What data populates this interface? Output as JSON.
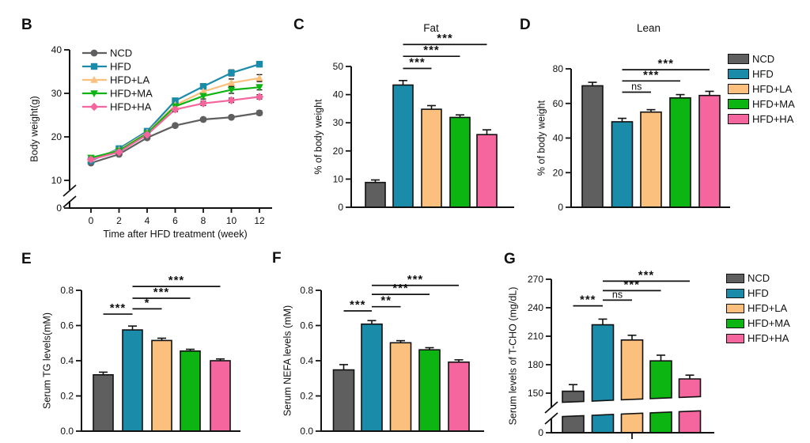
{
  "figure_colors": {
    "background": "#ffffff",
    "axis": "#111111",
    "text": "#111111"
  },
  "groups": [
    {
      "name": "NCD",
      "color": "#5f5f5f",
      "marker": "circle"
    },
    {
      "name": "HFD",
      "color": "#1a8ba8",
      "marker": "square"
    },
    {
      "name": "HFD+LA",
      "color": "#fbc07e",
      "marker": "triangle-up"
    },
    {
      "name": "HFD+MA",
      "color": "#0db513",
      "marker": "triangle-down"
    },
    {
      "name": "HFD+HA",
      "color": "#f5659e",
      "marker": "diamond"
    }
  ],
  "chart_data": [
    {
      "id": "B",
      "panel_label": "B",
      "type": "line",
      "xlabel": "Time after HFD treatment (week)",
      "ylabel": "Body weight(g)",
      "x": [
        0,
        2,
        4,
        6,
        8,
        10,
        12
      ],
      "yticks": [
        0,
        10,
        20,
        30,
        40
      ],
      "ylim": [
        0,
        40
      ],
      "axis_break": true,
      "series": [
        {
          "name": "NCD",
          "values": [
            14.0,
            16.0,
            19.8,
            22.6,
            24.0,
            24.5,
            25.5
          ],
          "errors": [
            0.3,
            0.3,
            0.4,
            0.4,
            0.4,
            0.4,
            0.5
          ]
        },
        {
          "name": "HFD",
          "values": [
            14.5,
            17.3,
            21.3,
            28.3,
            31.6,
            34.7,
            36.7
          ],
          "errors": [
            0.3,
            0.3,
            0.4,
            0.5,
            0.6,
            0.7,
            0.6
          ]
        },
        {
          "name": "HFD+LA",
          "values": [
            15.0,
            17.0,
            21.0,
            27.3,
            30.4,
            32.4,
            33.5
          ],
          "errors": [
            0.3,
            0.3,
            0.4,
            0.5,
            0.6,
            0.9,
            0.8
          ]
        },
        {
          "name": "HFD+MA",
          "values": [
            15.2,
            16.8,
            20.8,
            27.0,
            29.4,
            30.8,
            31.4
          ],
          "errors": [
            0.3,
            0.3,
            0.4,
            0.5,
            0.7,
            0.8,
            0.6
          ]
        },
        {
          "name": "HFD+HA",
          "values": [
            14.8,
            16.5,
            20.5,
            26.3,
            27.7,
            28.4,
            29.2
          ],
          "errors": [
            0.3,
            0.3,
            0.4,
            0.5,
            0.5,
            0.5,
            0.5
          ]
        }
      ]
    },
    {
      "id": "C",
      "panel_label": "C",
      "type": "bar",
      "title": "Fat",
      "ylabel": "% of body weight",
      "categories": [
        "NCD",
        "HFD",
        "HFD+LA",
        "HFD+MA",
        "HFD+HA"
      ],
      "values": [
        8.8,
        43.4,
        34.8,
        31.9,
        25.8
      ],
      "errors": [
        0.9,
        1.6,
        1.3,
        0.9,
        1.7
      ],
      "yticks": [
        0,
        10,
        20,
        30,
        40,
        50
      ],
      "ylim": [
        0,
        50
      ],
      "significance": [
        {
          "from": "HFD",
          "to": "HFD+LA",
          "label": "***",
          "y": 49.3
        },
        {
          "from": "HFD",
          "to": "HFD+MA",
          "label": "***",
          "y": 53.6
        },
        {
          "from": "HFD",
          "to": "HFD+HA",
          "label": "***",
          "y": 57.8
        }
      ]
    },
    {
      "id": "D",
      "panel_label": "D",
      "type": "bar",
      "title": "Lean",
      "ylabel": "% of body weight",
      "categories": [
        "NCD",
        "HFD",
        "HFD+LA",
        "HFD+MA",
        "HFD+HA"
      ],
      "values": [
        70.2,
        49.4,
        55.0,
        63.2,
        64.6
      ],
      "errors": [
        2.0,
        2.0,
        1.4,
        1.9,
        2.4
      ],
      "yticks": [
        0,
        20,
        40,
        60,
        80
      ],
      "ylim": [
        0,
        80
      ],
      "significance": [
        {
          "from": "HFD",
          "to": "HFD+LA",
          "label": "ns",
          "y": 66.5
        },
        {
          "from": "HFD",
          "to": "HFD+MA",
          "label": "***",
          "y": 73.0
        },
        {
          "from": "HFD",
          "to": "HFD+HA",
          "label": "***",
          "y": 79.5
        }
      ]
    },
    {
      "id": "E",
      "panel_label": "E",
      "type": "bar",
      "ylabel": "Serum TG levels(mM)",
      "categories": [
        "NCD",
        "HFD",
        "HFD+LA",
        "HFD+MA",
        "HFD+HA"
      ],
      "values": [
        0.32,
        0.575,
        0.515,
        0.455,
        0.4
      ],
      "errors": [
        0.015,
        0.022,
        0.013,
        0.01,
        0.01
      ],
      "yticks": [
        0,
        0.2,
        0.4,
        0.6,
        0.8
      ],
      "ytick_labels": [
        "0.0",
        "0.2",
        "0.4",
        "0.6",
        "0.8"
      ],
      "ylim": [
        0,
        0.8
      ],
      "significance": [
        {
          "from": "NCD",
          "to": "HFD",
          "label": "***",
          "y": 0.665
        },
        {
          "from": "HFD",
          "to": "HFD+LA",
          "label": "*",
          "y": 0.695
        },
        {
          "from": "HFD",
          "to": "HFD+MA",
          "label": "***",
          "y": 0.755
        },
        {
          "from": "HFD",
          "to": "HFD+HA",
          "label": "***",
          "y": 0.822
        }
      ]
    },
    {
      "id": "F",
      "panel_label": "F",
      "type": "bar",
      "ylabel": "Serum NEFA levels (mM)",
      "categories": [
        "NCD",
        "HFD",
        "HFD+LA",
        "HFD+MA",
        "HFD+HA"
      ],
      "values": [
        0.348,
        0.608,
        0.502,
        0.462,
        0.392
      ],
      "errors": [
        0.03,
        0.02,
        0.012,
        0.012,
        0.013
      ],
      "yticks": [
        0,
        0.2,
        0.4,
        0.6,
        0.8
      ],
      "ytick_labels": [
        "0.0",
        "0.2",
        "0.4",
        "0.6",
        "0.8"
      ],
      "ylim": [
        0,
        0.8
      ],
      "significance": [
        {
          "from": "NCD",
          "to": "HFD",
          "label": "***",
          "y": 0.683
        },
        {
          "from": "HFD",
          "to": "HFD+LA",
          "label": "**",
          "y": 0.707
        },
        {
          "from": "HFD",
          "to": "HFD+MA",
          "label": "***",
          "y": 0.777
        },
        {
          "from": "HFD",
          "to": "HFD+HA",
          "label": "***",
          "y": 0.828
        }
      ]
    },
    {
      "id": "G",
      "panel_label": "G",
      "type": "bar",
      "axis_break": true,
      "ylabel": "Serum levels of T-CHO (mg/dL)",
      "categories": [
        "NCD",
        "HFD",
        "HFD+LA",
        "HFD+MA",
        "HFD+HA"
      ],
      "values": [
        152,
        222,
        206,
        184,
        165
      ],
      "errors": [
        7,
        6,
        5,
        6,
        4
      ],
      "yticks": [
        0,
        150,
        180,
        210,
        240,
        270
      ],
      "ylim": [
        0,
        270
      ],
      "significance": [
        {
          "from": "NCD",
          "to": "HFD",
          "label": "***",
          "y": 242
        },
        {
          "from": "HFD",
          "to": "HFD+LA",
          "label": "ns",
          "y": 248
        },
        {
          "from": "HFD",
          "to": "HFD+MA",
          "label": "***",
          "y": 258
        },
        {
          "from": "HFD",
          "to": "HFD+HA",
          "label": "***",
          "y": 268
        }
      ]
    }
  ]
}
